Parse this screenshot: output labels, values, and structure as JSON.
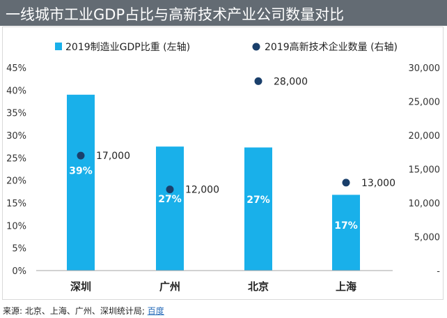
{
  "title": "一线城市工业GDP占比与高新技术产业公司数量对比",
  "source_label": "来源: 北京、上海、广州、深圳统计局;",
  "source_link": "百度",
  "colors": {
    "bar": "#19b0ea",
    "dot": "#1a3f6b",
    "title_bg": "#636b73"
  },
  "chart_data": {
    "type": "bar",
    "categories": [
      "深圳",
      "广州",
      "北京",
      "上海"
    ],
    "series": [
      {
        "name": "2019制造业GDP比重 (左轴)",
        "type": "bar",
        "axis": "left",
        "values": [
          39,
          27.5,
          27.3,
          16.8
        ],
        "labels": [
          "39%",
          "27%",
          "27%",
          "17%"
        ]
      },
      {
        "name": "2019高新技术企业数量 (右轴)",
        "type": "scatter",
        "axis": "right",
        "values": [
          17000,
          12000,
          28000,
          13000
        ],
        "labels": [
          "17,000",
          "12,000",
          "28,000",
          "13,000"
        ]
      }
    ],
    "y_left": {
      "min": 0,
      "max": 45,
      "ticks": [
        0,
        5,
        10,
        15,
        20,
        25,
        30,
        35,
        40,
        45
      ],
      "tick_labels": [
        "0%",
        "5%",
        "10%",
        "15%",
        "20%",
        "25%",
        "30%",
        "35%",
        "40%",
        "45%"
      ]
    },
    "y_right": {
      "min": 0,
      "max": 30000,
      "ticks": [
        0,
        5000,
        10000,
        15000,
        20000,
        25000,
        30000
      ],
      "tick_labels": [
        "-",
        "5,000",
        "10,000",
        "15,000",
        "20,000",
        "25,000",
        "30,000"
      ]
    },
    "legend_position": "top",
    "grid": false
  }
}
